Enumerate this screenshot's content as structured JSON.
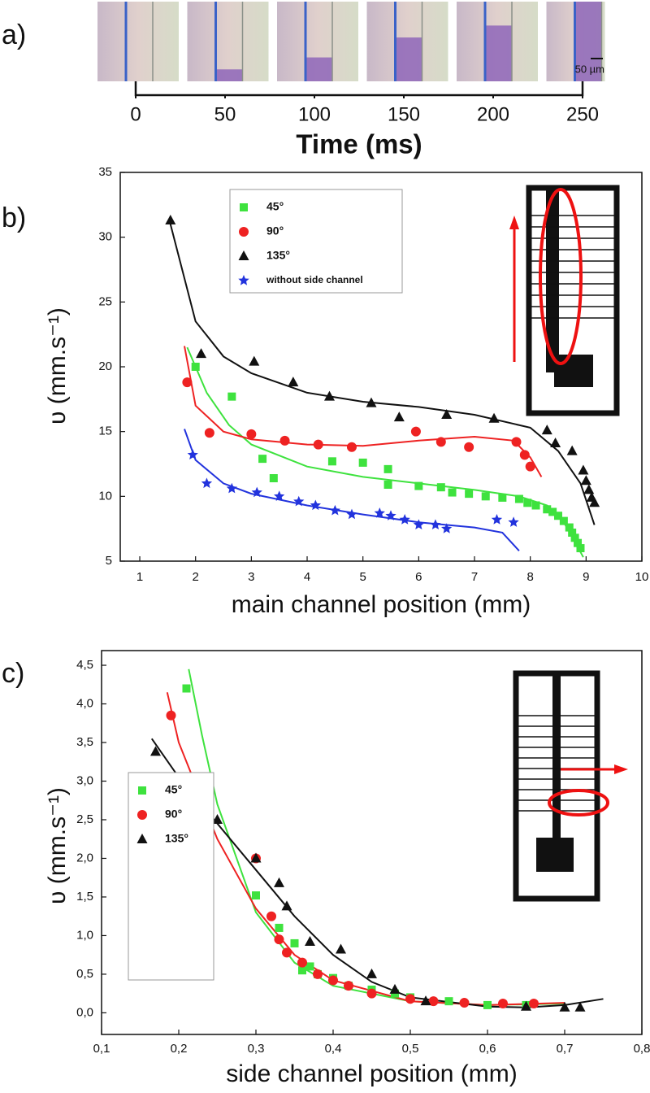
{
  "chart_data": [
    {
      "type": "timeline",
      "panel_label": "a)",
      "x_label": "Time (ms)",
      "scale_bar": "50 µm",
      "xlim": [
        0,
        250
      ],
      "xticks": [
        0,
        50,
        100,
        150,
        200,
        250
      ]
    },
    {
      "type": "scatter",
      "panel_label": "b)",
      "x_label": "main channel position (mm)",
      "y_label": "υ (mm.s⁻¹)",
      "xlim": [
        0.65,
        10
      ],
      "xticks": [
        1,
        2,
        3,
        4,
        5,
        6,
        7,
        8,
        9,
        10
      ],
      "ylim": [
        5,
        35
      ],
      "yticks": [
        5,
        10,
        15,
        20,
        25,
        30,
        35
      ],
      "legend": "upper left",
      "series": [
        {
          "name": "45°",
          "color": "#3ee23e",
          "marker": "square",
          "x": [
            2.0,
            2.65,
            3.2,
            3.4,
            4.45,
            5.0,
            5.45,
            5.45,
            6.0,
            6.4,
            6.6,
            6.9,
            7.2,
            7.5,
            7.8,
            7.95,
            8.1,
            8.3,
            8.4,
            8.5,
            8.6,
            8.7,
            8.75,
            8.8,
            8.85,
            8.9
          ],
          "y": [
            20.0,
            17.7,
            12.9,
            11.4,
            12.7,
            12.6,
            12.1,
            10.9,
            10.8,
            10.7,
            10.3,
            10.2,
            10.0,
            9.9,
            9.8,
            9.5,
            9.3,
            9.0,
            8.8,
            8.5,
            8.1,
            7.6,
            7.2,
            6.8,
            6.4,
            6.0
          ],
          "fit": {
            "x": [
              1.85,
              2.2,
              2.6,
              3,
              4,
              5,
              6,
              7,
              7.8,
              8.3,
              8.6,
              8.8,
              8.95
            ],
            "y": [
              21.5,
              18,
              15.5,
              14,
              12.3,
              11.5,
              11,
              10.5,
              10,
              9.3,
              8,
              6.5,
              5.3
            ]
          }
        },
        {
          "name": "90°",
          "color": "#ee2222",
          "marker": "circle",
          "x": [
            1.85,
            2.25,
            3.0,
            3.6,
            4.2,
            4.8,
            5.95,
            6.4,
            6.9,
            7.75,
            7.9,
            8.0
          ],
          "y": [
            18.8,
            14.9,
            14.8,
            14.3,
            14.0,
            13.8,
            15.0,
            14.2,
            13.8,
            14.2,
            13.2,
            12.3
          ],
          "fit": {
            "x": [
              1.8,
              2.0,
              2.5,
              3,
              4,
              5,
              6,
              7,
              7.7,
              8.0,
              8.2
            ],
            "y": [
              21.6,
              17,
              15,
              14.4,
              14,
              13.9,
              14.3,
              14.6,
              14.3,
              13,
              11.5
            ]
          }
        },
        {
          "name": "135°",
          "color": "#111111",
          "marker": "triangle",
          "x": [
            1.55,
            2.1,
            3.05,
            3.75,
            4.4,
            5.15,
            5.65,
            6.5,
            7.35,
            8.3,
            8.45,
            8.75,
            8.95,
            9.0,
            9.05,
            9.1,
            9.15
          ],
          "y": [
            31.3,
            21.0,
            20.4,
            18.8,
            17.7,
            17.2,
            16.1,
            16.3,
            16.0,
            15.1,
            14.1,
            13.5,
            12.0,
            11.2,
            10.5,
            9.9,
            9.5
          ],
          "fit": {
            "x": [
              1.55,
              2,
              2.5,
              3,
              4,
              5,
              6,
              7,
              8,
              8.5,
              8.9,
              9.15
            ],
            "y": [
              31,
              23.5,
              20.8,
              19.5,
              18,
              17.3,
              16.9,
              16.3,
              15.3,
              13.5,
              11,
              7.8
            ]
          }
        },
        {
          "name": "without side channel",
          "color": "#2233dd",
          "marker": "star",
          "x": [
            1.95,
            2.2,
            2.65,
            3.1,
            3.5,
            3.85,
            4.15,
            4.5,
            4.8,
            5.3,
            5.5,
            5.75,
            6.0,
            6.3,
            6.5,
            7.4,
            7.7
          ],
          "y": [
            13.2,
            11.0,
            10.6,
            10.3,
            10.0,
            9.6,
            9.3,
            8.9,
            8.6,
            8.7,
            8.5,
            8.2,
            7.8,
            7.8,
            7.5,
            8.2,
            8.0
          ],
          "fit": {
            "x": [
              1.8,
              2.0,
              2.5,
              3,
              4,
              5,
              6,
              7,
              7.5,
              7.8
            ],
            "y": [
              15.2,
              12.8,
              11,
              10.2,
              9.3,
              8.6,
              8.0,
              7.6,
              7.2,
              5.8
            ]
          }
        }
      ]
    },
    {
      "type": "scatter",
      "panel_label": "c)",
      "x_label": "side channel position (mm)",
      "y_label": "υ (mm.s⁻¹)",
      "xlim": [
        0.1,
        0.8
      ],
      "xticks": [
        {
          "value": 0.1,
          "label": "0,1"
        },
        {
          "value": 0.2,
          "label": "0,2"
        },
        {
          "value": 0.3,
          "label": "0,3"
        },
        {
          "value": 0.4,
          "label": "0,4"
        },
        {
          "value": 0.5,
          "label": "0,5"
        },
        {
          "value": 0.6,
          "label": "0,6"
        },
        {
          "value": 0.7,
          "label": "0,7"
        },
        {
          "value": 0.8,
          "label": "0,8"
        }
      ],
      "ylim": [
        -0.28,
        4.69
      ],
      "yticks": [
        {
          "value": 0,
          "label": "0,0"
        },
        {
          "value": 0.5,
          "label": "0,5"
        },
        {
          "value": 1,
          "label": "1,0"
        },
        {
          "value": 1.5,
          "label": "1,5"
        },
        {
          "value": 2,
          "label": "2,0"
        },
        {
          "value": 2.5,
          "label": "2,5"
        },
        {
          "value": 3,
          "label": "3,0"
        },
        {
          "value": 3.5,
          "label": "3,5"
        },
        {
          "value": 4,
          "label": "4,0"
        },
        {
          "value": 4.5,
          "label": "4,5"
        }
      ],
      "legend": "lower left",
      "series": [
        {
          "name": "45°",
          "color": "#3ee23e",
          "marker": "square",
          "x": [
            0.21,
            0.3,
            0.33,
            0.35,
            0.36,
            0.37,
            0.38,
            0.4,
            0.42,
            0.45,
            0.48,
            0.5,
            0.55,
            0.6,
            0.65
          ],
          "y": [
            4.2,
            1.52,
            1.1,
            0.9,
            0.55,
            0.6,
            0.5,
            0.45,
            0.35,
            0.3,
            0.25,
            0.2,
            0.15,
            0.1,
            0.1
          ],
          "fit": {
            "x": [
              0.213,
              0.23,
              0.25,
              0.3,
              0.35,
              0.4,
              0.5,
              0.6,
              0.7
            ],
            "y": [
              4.45,
              3.6,
              2.7,
              1.3,
              0.65,
              0.35,
              0.15,
              0.1,
              0.12
            ]
          }
        },
        {
          "name": "90°",
          "color": "#ee2222",
          "marker": "circle",
          "x": [
            0.19,
            0.3,
            0.32,
            0.33,
            0.34,
            0.36,
            0.38,
            0.4,
            0.42,
            0.45,
            0.5,
            0.53,
            0.57,
            0.62,
            0.66
          ],
          "y": [
            3.85,
            2.0,
            1.25,
            0.95,
            0.78,
            0.65,
            0.5,
            0.42,
            0.35,
            0.25,
            0.18,
            0.15,
            0.13,
            0.12,
            0.12
          ],
          "fit": {
            "x": [
              0.185,
              0.2,
              0.25,
              0.3,
              0.35,
              0.4,
              0.5,
              0.6,
              0.7
            ],
            "y": [
              4.15,
              3.5,
              2.25,
              1.35,
              0.75,
              0.42,
              0.15,
              0.1,
              0.13
            ]
          }
        },
        {
          "name": "135°",
          "color": "#111111",
          "marker": "triangle",
          "x": [
            0.17,
            0.25,
            0.3,
            0.33,
            0.34,
            0.37,
            0.41,
            0.45,
            0.48,
            0.52,
            0.65,
            0.7,
            0.72
          ],
          "y": [
            3.38,
            2.5,
            2.0,
            1.68,
            1.38,
            0.92,
            0.82,
            0.5,
            0.3,
            0.15,
            0.08,
            0.07,
            0.07
          ],
          "fit": {
            "x": [
              0.165,
              0.2,
              0.25,
              0.3,
              0.35,
              0.4,
              0.45,
              0.5,
              0.6,
              0.65,
              0.7,
              0.75
            ],
            "y": [
              3.55,
              3.05,
              2.45,
              1.85,
              1.25,
              0.75,
              0.4,
              0.2,
              0.08,
              0.07,
              0.1,
              0.18
            ]
          }
        }
      ]
    }
  ]
}
